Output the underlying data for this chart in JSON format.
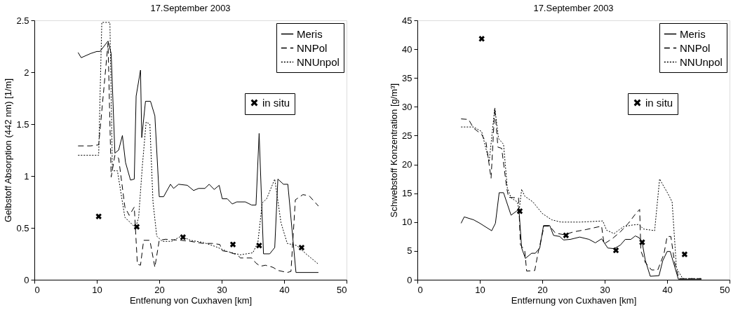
{
  "chart_data": [
    {
      "type": "line",
      "title": "17.September 2003",
      "xlabel": "Entfenung von Cuxhaven [km]",
      "ylabel": "Gelbstoff Absorption (442 nm) [1/m]",
      "xlim": [
        0,
        50
      ],
      "xticks": [
        0,
        10,
        20,
        30,
        40,
        50
      ],
      "ylim": [
        0,
        2.5
      ],
      "yticks": [
        0,
        0.5,
        1,
        1.5,
        2,
        2.5
      ],
      "grid": false,
      "legend": "top right",
      "series": [
        {
          "name": "Meris",
          "color": "#000000",
          "line_style": "solid",
          "x": [
            7,
            7.5,
            9,
            10,
            10.5,
            11.8,
            12.3,
            12.9,
            13.5,
            14.1,
            14.6,
            15.4,
            16,
            16.3,
            17,
            17.2,
            17.8,
            18.6,
            19.3,
            20,
            20.7,
            21.8,
            22.3,
            23.1,
            24.5,
            25.5,
            26.3,
            27.3,
            28,
            28.8,
            29.6,
            30.1,
            30.9,
            31.7,
            32.4,
            33.8,
            34.8,
            35.5,
            36,
            36.7,
            37.7,
            38.5,
            39,
            39.9,
            40.6,
            41.9,
            45.5
          ],
          "values": [
            2.19,
            2.14,
            2.18,
            2.2,
            2.2,
            2.3,
            2.18,
            1.22,
            1.25,
            1.39,
            1.13,
            0.96,
            0.97,
            1.77,
            2.02,
            1.37,
            1.72,
            1.72,
            1.58,
            0.8,
            0.8,
            0.92,
            0.88,
            0.92,
            0.91,
            0.86,
            0.88,
            0.88,
            0.92,
            0.87,
            0.91,
            0.78,
            0.78,
            0.73,
            0.75,
            0.75,
            0.72,
            0.72,
            1.41,
            0.25,
            0.25,
            0.31,
            0.97,
            0.92,
            0.92,
            0.07,
            0.07
          ]
        },
        {
          "name": "NNPol",
          "color": "#000000",
          "line_style": "dashed",
          "x": [
            7,
            9,
            10.3,
            11.8,
            12.3,
            12.9,
            13.5,
            14.5,
            15.2,
            16,
            16.5,
            17,
            17.5,
            18.5,
            19.3,
            20,
            21,
            23.5,
            25,
            27,
            28.5,
            29.7,
            30.1,
            31,
            32.5,
            33,
            34.8,
            35.5,
            36.2,
            37,
            38.2,
            39,
            40.5,
            41.1,
            41.8,
            43,
            44,
            45.5
          ],
          "values": [
            1.29,
            1.29,
            1.3,
            2.28,
            0.99,
            1.2,
            1.17,
            0.7,
            0.62,
            0.7,
            0.15,
            0.14,
            0.38,
            0.38,
            0.12,
            0.38,
            0.39,
            0.38,
            0.37,
            0.35,
            0.35,
            0.34,
            0.28,
            0.27,
            0.24,
            0.21,
            0.21,
            0.16,
            0.13,
            0.14,
            0.12,
            0.09,
            0.07,
            0.08,
            0.77,
            0.82,
            0.81,
            0.71
          ]
        },
        {
          "name": "NNUnpol",
          "color": "#000000",
          "line_style": "dotted",
          "x": [
            7,
            10.3,
            10.8,
            12.1,
            12.5,
            13.3,
            14.5,
            15.4,
            16.2,
            16.7,
            17.3,
            17.9,
            18.5,
            19,
            19.6,
            20.5,
            22,
            23.5,
            25,
            27,
            29,
            31,
            33,
            35,
            35.8,
            36.5,
            37.2,
            38.5,
            39.5,
            40.5,
            42,
            43.5,
            45.5
          ],
          "values": [
            1.2,
            1.2,
            2.48,
            2.48,
            1.05,
            1.05,
            0.6,
            0.55,
            0.5,
            0.6,
            1.1,
            1.52,
            1.5,
            0.75,
            0.42,
            0.37,
            0.37,
            0.42,
            0.38,
            0.36,
            0.32,
            0.27,
            0.24,
            0.26,
            0.36,
            0.74,
            0.78,
            0.97,
            0.55,
            0.35,
            0.33,
            0.25,
            0.15
          ]
        },
        {
          "name": "in situ",
          "type": "scatter",
          "marker": "cross",
          "color": "#000000",
          "x": [
            10.3,
            16.4,
            23.8,
            31.8,
            36,
            42.8
          ],
          "values": [
            0.61,
            0.51,
            0.41,
            0.34,
            0.33,
            0.31
          ]
        }
      ]
    },
    {
      "type": "line",
      "title": "17.September 2003",
      "xlabel": "Entfernung von Cuxhaven [km]",
      "ylabel": "Schwebstoff Konzentration [g/m³]",
      "xlim": [
        0,
        50
      ],
      "xticks": [
        0,
        10,
        20,
        30,
        40,
        50
      ],
      "ylim": [
        0,
        45
      ],
      "yticks": [
        0,
        5,
        10,
        15,
        20,
        25,
        30,
        35,
        40,
        45
      ],
      "grid": false,
      "legend": "top right",
      "series": [
        {
          "name": "Meris",
          "color": "#000000",
          "line_style": "solid",
          "x": [
            7,
            7.5,
            9,
            10,
            11.9,
            12.5,
            13.1,
            13.8,
            15,
            16,
            16.3,
            16.7,
            17.3,
            18.3,
            18.9,
            19.6,
            20.2,
            21.2,
            21.8,
            22.8,
            23.4,
            24.5,
            26,
            27.5,
            28.5,
            29.5,
            30.5,
            31.5,
            32.5,
            33.3,
            34.2,
            34.9,
            35.5,
            36,
            36.5,
            37.3,
            38.7,
            39.3,
            40,
            40.5,
            41.8,
            45.5
          ],
          "values": [
            9.8,
            10.9,
            10.4,
            9.8,
            8.5,
            9.8,
            15.1,
            15.1,
            11.2,
            12,
            11.7,
            5.5,
            3.7,
            4.6,
            4.6,
            5.5,
            9.4,
            9.4,
            7.7,
            7.5,
            6.9,
            7,
            7.4,
            7,
            6.4,
            7.1,
            5.5,
            5.4,
            6,
            7,
            7,
            7.6,
            7.3,
            6.5,
            3.4,
            0.6,
            0.7,
            3.3,
            4.9,
            4.9,
            0.1,
            0.1
          ]
        },
        {
          "name": "NNPol",
          "color": "#000000",
          "line_style": "dashed",
          "x": [
            7,
            8.2,
            9,
            10.3,
            11,
            11.8,
            12.4,
            12.9,
            13.5,
            14.3,
            14.6,
            16.2,
            16.5,
            17.2,
            17.5,
            18.8,
            19.3,
            20.3,
            21.2,
            22.1,
            23.5,
            25,
            27,
            29.5,
            29.9,
            31.3,
            32.5,
            33.8,
            35,
            35.6,
            35.8,
            36.5,
            37.5,
            38.5,
            39.5,
            40,
            40.6,
            41.2,
            41.9,
            43.5,
            45.5
          ],
          "values": [
            27.9,
            27.8,
            26.3,
            25.2,
            23.8,
            17.6,
            29.8,
            23,
            22.8,
            16,
            14.3,
            14.2,
            6.1,
            5,
            1.5,
            1.6,
            4.5,
            9.3,
            9.3,
            8.1,
            7.8,
            8.3,
            8.7,
            9.3,
            6.2,
            7.2,
            8.3,
            9.8,
            11.5,
            12.2,
            5,
            3,
            1.7,
            1.7,
            4.5,
            7.5,
            7.5,
            3,
            0.2,
            0.2,
            0.2
          ]
        },
        {
          "name": "NNUnpol",
          "color": "#000000",
          "line_style": "dotted",
          "x": [
            7,
            9,
            10.3,
            11.5,
            12.4,
            13,
            13.8,
            14.4,
            15,
            16,
            16.3,
            16.7,
            17.2,
            18.5,
            20,
            21.5,
            23,
            24.5,
            26,
            28,
            29.7,
            30.3,
            31.5,
            33,
            34.5,
            35.5,
            36.2,
            37.5,
            38,
            38.8,
            39.3,
            40.1,
            40.8,
            41.5,
            42.5,
            45.5
          ],
          "values": [
            26.5,
            26.5,
            25.7,
            20.5,
            29.8,
            24.5,
            23.5,
            16,
            14.2,
            13.5,
            12,
            15.7,
            14.5,
            13.5,
            11.5,
            10.4,
            10,
            10,
            10,
            10.1,
            10.2,
            8.6,
            8,
            9.2,
            9.5,
            9.6,
            8.8,
            8.6,
            8.5,
            17.5,
            16.5,
            15,
            13.5,
            2,
            0.2,
            0.2
          ]
        },
        {
          "name": "in situ",
          "type": "scatter",
          "marker": "cross",
          "color": "#000000",
          "x": [
            10.3,
            16.4,
            23.8,
            31.8,
            36,
            42.8
          ],
          "values": [
            41.8,
            11.9,
            7.7,
            5.1,
            6.5,
            4.4
          ]
        }
      ]
    }
  ]
}
